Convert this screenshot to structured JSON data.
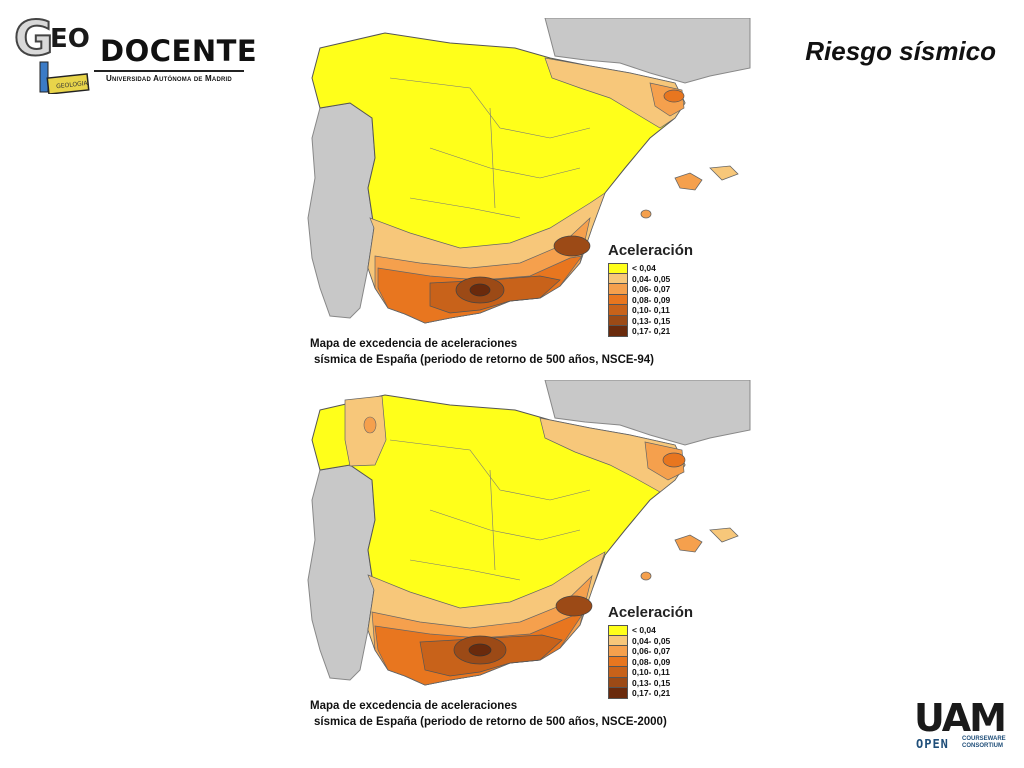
{
  "header": {
    "logo": {
      "letter_g": "G",
      "letters_eo": "EO",
      "word": "DOCENTE",
      "subtitle": "Universidad Autónoma de Madrid"
    },
    "title": "Riesgo sísmico"
  },
  "legend": {
    "title": "Aceleración",
    "items": [
      {
        "label": "< 0,04",
        "color": "#ffff1a"
      },
      {
        "label": "0,04- 0,05",
        "color": "#f7c77a"
      },
      {
        "label": "0,06- 0,07",
        "color": "#f5a04d"
      },
      {
        "label": "0,08- 0,09",
        "color": "#e8761f"
      },
      {
        "label": "0,10- 0,11",
        "color": "#c8621a"
      },
      {
        "label": "0,13- 0,15",
        "color": "#9c4a16"
      },
      {
        "label": "0,17- 0,21",
        "color": "#6a2a0c"
      }
    ]
  },
  "maps": [
    {
      "caption_line1": "Mapa de excedencia de aceleraciones",
      "caption_line2": "sísmica de España (periodo de retorno de 500 años, NSCE-94)"
    },
    {
      "caption_line1": "Mapa de excedencia de aceleraciones",
      "caption_line2": "sísmica de España (periodo de retorno de 500 años, NSCE-2000)"
    }
  ],
  "colors": {
    "neighbor_countries": "#c8c8c8",
    "low_zone": "#ffff1a"
  },
  "footer": {
    "uam": "UAM",
    "open": "OPEN",
    "courseware_line1": "COURSEWARE",
    "courseware_line2": "CONSORTIUM"
  }
}
